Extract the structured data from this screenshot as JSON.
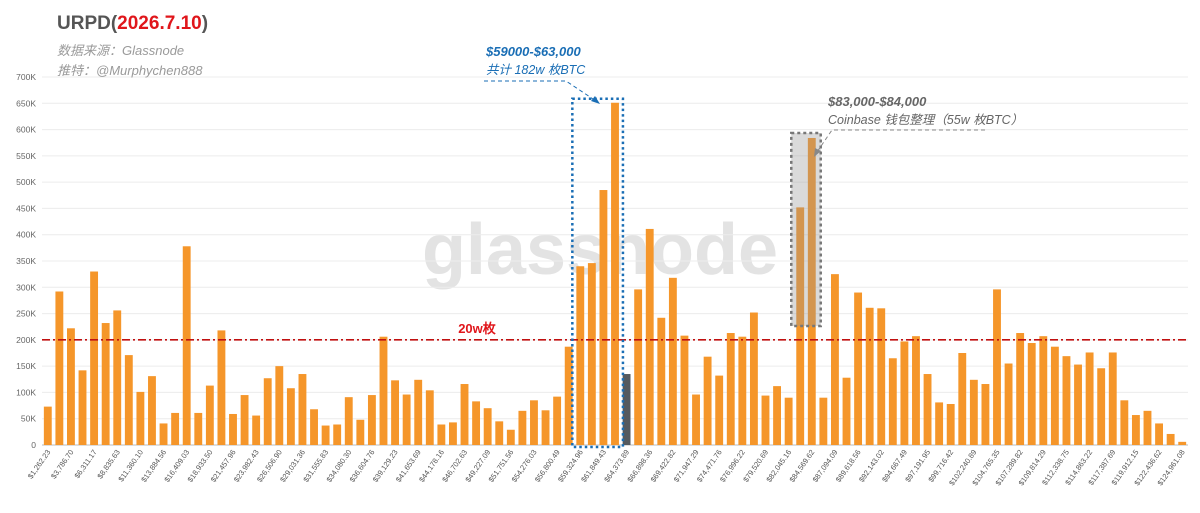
{
  "header": {
    "title_prefix": "URPD",
    "title_date": "2026.7.10",
    "source": "数据来源：Glassnode",
    "author": "推特：@Murphychen888"
  },
  "watermark": "glassnode",
  "colors": {
    "bar": "#f5962a",
    "current_bar": "#555a5f",
    "refline": "#c01010",
    "box_blue": "#1a6eb5",
    "box_gray": "#777777",
    "label_red": "#e0161b"
  },
  "annotations": {
    "zone1": {
      "range": "$59000-$63,000",
      "note": "共计 182w 枚BTC"
    },
    "zone2": {
      "range": "$83,000-$84,000",
      "note": "Coinbase 钱包整理（55w 枚BTC）"
    },
    "refline_label": "20w枚"
  },
  "chart_data": {
    "type": "bar",
    "y_ticks": [
      "0",
      "50K",
      "100K",
      "150K",
      "200K",
      "250K",
      "300K",
      "350K",
      "400K",
      "450K",
      "500K",
      "550K",
      "600K",
      "650K",
      "700K"
    ],
    "ylim": [
      0,
      700000
    ],
    "grid": true,
    "reference_line": {
      "value": 200000,
      "label": "20w枚",
      "style": "dash-dot"
    },
    "x_tick_labels": [
      "$1,262.23",
      "$3,786.70",
      "$6,311.17",
      "$8,835.63",
      "$11,360.10",
      "$13,884.56",
      "$16,409.03",
      "$18,933.50",
      "$21,457.96",
      "$23,982.43",
      "$26,506.90",
      "$29,031.36",
      "$31,555.83",
      "$34,080.30",
      "$36,604.76",
      "$39,129.23",
      "$41,653.69",
      "$44,178.16",
      "$46,702.63",
      "$49,227.09",
      "$51,751.56",
      "$54,276.03",
      "$56,800.49",
      "$59,324.96",
      "$61,849.43",
      "$64,373.89",
      "$66,898.36",
      "$69,422.82",
      "$71,947.29",
      "$74,471.76",
      "$76,996.22",
      "$79,520.69",
      "$82,045.16",
      "$84,569.62",
      "$87,094.09",
      "$89,618.56",
      "$92,143.02",
      "$94,667.49",
      "$97,191.95",
      "$99,716.42",
      "$102,240.89",
      "$104,765.35",
      "$107,289.82",
      "$109,814.29",
      "$112,338.75",
      "$114,863.22",
      "$117,387.69",
      "$119,912.15",
      "$122,436.62",
      "$124,961.08"
    ],
    "values": [
      73000,
      292000,
      222000,
      142000,
      330000,
      232000,
      256000,
      171000,
      101000,
      131000,
      41000,
      61000,
      378000,
      61000,
      113000,
      218000,
      59000,
      95000,
      56000,
      127000,
      150000,
      108000,
      135000,
      68000,
      37000,
      39000,
      91000,
      48000,
      95000,
      206000,
      123000,
      96000,
      124000,
      104000,
      39000,
      43000,
      116000,
      83000,
      70000,
      45000,
      29000,
      65000,
      85000,
      66000,
      92000,
      187000,
      340000,
      346000,
      485000,
      651000,
      135000,
      296000,
      411000,
      242000,
      318000,
      208000,
      96000,
      168000,
      132000,
      213000,
      206000,
      252000,
      94000,
      112000,
      90000,
      452000,
      584000,
      90000,
      325000,
      128000,
      290000,
      261000,
      260000,
      165000,
      197000,
      207000,
      135000,
      81000,
      78000,
      175000,
      124000,
      116000,
      296000,
      155000,
      213000,
      194000,
      207000,
      187000,
      169000,
      153000,
      176000,
      146000,
      176000,
      85000,
      57000,
      65000,
      41000,
      21000,
      6000
    ],
    "current_price_index": 50
  }
}
